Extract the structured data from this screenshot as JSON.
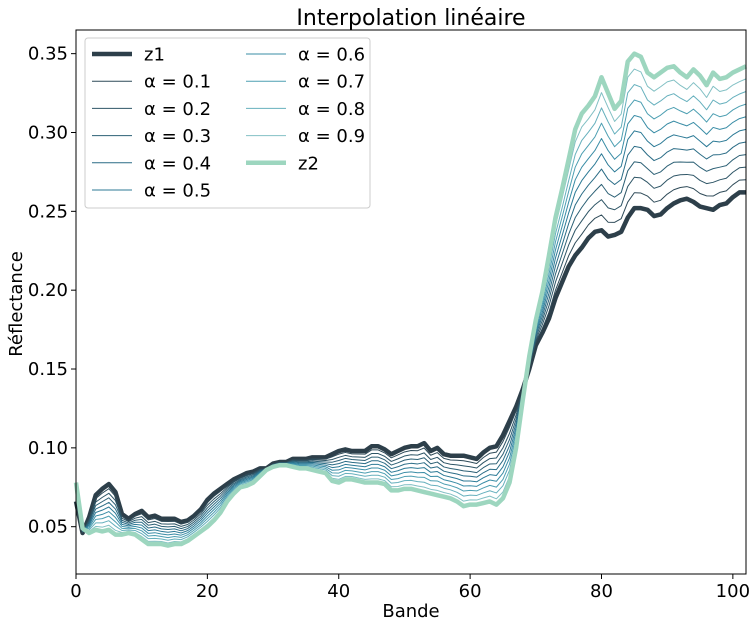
{
  "chart_data": {
    "type": "line",
    "title": "Interpolation linéaire",
    "xlabel": "Bande",
    "ylabel": "Réflectance",
    "xlim": [
      0,
      102
    ],
    "ylim": [
      0.02,
      0.365
    ],
    "xticks": [
      0,
      20,
      40,
      60,
      80,
      100
    ],
    "xtick_labels": [
      "0",
      "20",
      "40",
      "60",
      "80",
      "100"
    ],
    "yticks": [
      0.05,
      0.1,
      0.15,
      0.2,
      0.25,
      0.3,
      0.35
    ],
    "ytick_labels": [
      "0.05",
      "0.10",
      "0.15",
      "0.20",
      "0.25",
      "0.30",
      "0.35"
    ],
    "grid": false,
    "legend_position": "top-left",
    "legend_columns": 2,
    "x": [
      0,
      1,
      2,
      3,
      4,
      5,
      6,
      7,
      8,
      9,
      10,
      11,
      12,
      13,
      14,
      15,
      16,
      17,
      18,
      19,
      20,
      21,
      22,
      23,
      24,
      25,
      26,
      27,
      28,
      29,
      30,
      31,
      32,
      33,
      34,
      35,
      36,
      37,
      38,
      39,
      40,
      41,
      42,
      43,
      44,
      45,
      46,
      47,
      48,
      49,
      50,
      51,
      52,
      53,
      54,
      55,
      56,
      57,
      58,
      59,
      60,
      61,
      62,
      63,
      64,
      65,
      66,
      67,
      68,
      69,
      70,
      71,
      72,
      73,
      74,
      75,
      76,
      77,
      78,
      79,
      80,
      81,
      82,
      83,
      84,
      85,
      86,
      87,
      88,
      89,
      90,
      91,
      92,
      93,
      94,
      95,
      96,
      97,
      98,
      99,
      100,
      101,
      102
    ],
    "z1": [
      0.066,
      0.046,
      0.056,
      0.07,
      0.074,
      0.077,
      0.072,
      0.058,
      0.055,
      0.058,
      0.06,
      0.056,
      0.057,
      0.055,
      0.055,
      0.055,
      0.053,
      0.054,
      0.057,
      0.061,
      0.067,
      0.071,
      0.074,
      0.077,
      0.08,
      0.082,
      0.084,
      0.085,
      0.087,
      0.087,
      0.09,
      0.091,
      0.091,
      0.093,
      0.093,
      0.093,
      0.094,
      0.094,
      0.094,
      0.096,
      0.098,
      0.099,
      0.098,
      0.098,
      0.098,
      0.101,
      0.101,
      0.099,
      0.096,
      0.098,
      0.1,
      0.101,
      0.101,
      0.103,
      0.098,
      0.1,
      0.096,
      0.095,
      0.095,
      0.095,
      0.094,
      0.093,
      0.097,
      0.1,
      0.101,
      0.108,
      0.117,
      0.126,
      0.137,
      0.15,
      0.165,
      0.173,
      0.182,
      0.195,
      0.205,
      0.215,
      0.222,
      0.227,
      0.233,
      0.237,
      0.238,
      0.234,
      0.235,
      0.237,
      0.246,
      0.252,
      0.252,
      0.251,
      0.247,
      0.248,
      0.252,
      0.255,
      0.257,
      0.258,
      0.256,
      0.253,
      0.252,
      0.251,
      0.254,
      0.255,
      0.259,
      0.262,
      0.262
    ],
    "z2": [
      0.078,
      0.049,
      0.046,
      0.048,
      0.047,
      0.048,
      0.045,
      0.045,
      0.046,
      0.045,
      0.042,
      0.039,
      0.039,
      0.039,
      0.038,
      0.039,
      0.039,
      0.041,
      0.044,
      0.047,
      0.05,
      0.054,
      0.059,
      0.066,
      0.071,
      0.075,
      0.076,
      0.078,
      0.082,
      0.086,
      0.088,
      0.089,
      0.089,
      0.088,
      0.087,
      0.087,
      0.086,
      0.085,
      0.084,
      0.079,
      0.078,
      0.08,
      0.08,
      0.079,
      0.078,
      0.078,
      0.078,
      0.077,
      0.073,
      0.073,
      0.074,
      0.074,
      0.073,
      0.072,
      0.071,
      0.07,
      0.069,
      0.068,
      0.066,
      0.063,
      0.064,
      0.064,
      0.065,
      0.066,
      0.064,
      0.068,
      0.078,
      0.1,
      0.13,
      0.158,
      0.181,
      0.199,
      0.222,
      0.246,
      0.264,
      0.283,
      0.302,
      0.312,
      0.317,
      0.323,
      0.335,
      0.325,
      0.315,
      0.32,
      0.345,
      0.35,
      0.348,
      0.338,
      0.335,
      0.338,
      0.341,
      0.342,
      0.338,
      0.335,
      0.34,
      0.336,
      0.33,
      0.338,
      0.334,
      0.335,
      0.338,
      0.34,
      0.342
    ],
    "series": [
      {
        "name": "z1",
        "alpha": 0.0,
        "color": "#2d3f4a",
        "width": 4.5
      },
      {
        "name": "α = 0.1",
        "alpha": 0.1,
        "color": "#2e4a58",
        "width": 1
      },
      {
        "name": "α = 0.2",
        "alpha": 0.2,
        "color": "#2e5566",
        "width": 1
      },
      {
        "name": "α = 0.3",
        "alpha": 0.3,
        "color": "#2c6075",
        "width": 1
      },
      {
        "name": "α = 0.4",
        "alpha": 0.4,
        "color": "#2a6c86",
        "width": 1
      },
      {
        "name": "α = 0.5",
        "alpha": 0.5,
        "color": "#2c7a96",
        "width": 1
      },
      {
        "name": "α = 0.6",
        "alpha": 0.6,
        "color": "#3a8da6",
        "width": 1
      },
      {
        "name": "α = 0.7",
        "alpha": 0.7,
        "color": "#4d9fb2",
        "width": 1
      },
      {
        "name": "α = 0.8",
        "alpha": 0.8,
        "color": "#66b0bd",
        "width": 1
      },
      {
        "name": "α = 0.9",
        "alpha": 0.9,
        "color": "#82c0c4",
        "width": 1
      },
      {
        "name": "z2",
        "alpha": 1.0,
        "color": "#9dd6bf",
        "width": 4.5
      }
    ]
  }
}
